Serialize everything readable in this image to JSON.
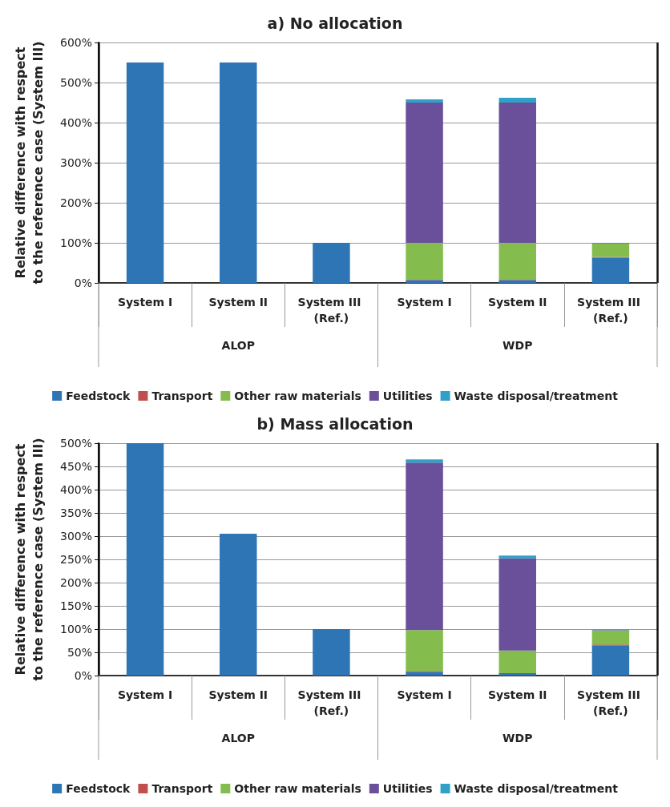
{
  "chart_data": [
    {
      "type": "bar",
      "title": "a) No allocation",
      "ylabel": "Relative difference with respect to the reference case (System III)",
      "categories": [
        "System I",
        "System II",
        "System III (Ref.)",
        "System I",
        "System II",
        "System III (Ref.)"
      ],
      "annotations": [
        "ALOP",
        "WDP"
      ],
      "stacked": true,
      "grid": "y",
      "legend": "bottom",
      "ylim": [
        0,
        600
      ],
      "yticks": [
        {
          "value": 0,
          "label": "0%"
        },
        {
          "value": 100,
          "label": "100%"
        },
        {
          "value": 200,
          "label": "200%"
        },
        {
          "value": 300,
          "label": "300%"
        },
        {
          "value": 400,
          "label": "400%"
        },
        {
          "value": 500,
          "label": "500%"
        },
        {
          "value": 600,
          "label": "600%"
        }
      ],
      "series": [
        {
          "name": "Feedstock",
          "color": "#2e75b6",
          "values": [
            550,
            550,
            100,
            7,
            7,
            63
          ]
        },
        {
          "name": "Transport",
          "color": "#c0504d",
          "values": [
            null,
            null,
            null,
            1,
            1,
            2
          ]
        },
        {
          "name": "Other raw materials",
          "color": "#84bd4e",
          "values": [
            null,
            null,
            null,
            92,
            92,
            33
          ]
        },
        {
          "name": "Utilities",
          "color": "#6a4f9a",
          "values": [
            null,
            null,
            null,
            350,
            350,
            1
          ]
        },
        {
          "name": "Waste disposal/treatment",
          "color": "#31a0c8",
          "values": [
            null,
            null,
            null,
            8,
            12,
            1
          ]
        }
      ]
    },
    {
      "type": "bar",
      "title": "b) Mass allocation",
      "ylabel": "Relative difference with respect to the reference case (System III)",
      "categories": [
        "System I",
        "System II",
        "System III (Ref.)",
        "System I",
        "System II",
        "System III (Ref.)"
      ],
      "annotations": [
        "ALOP",
        "WDP"
      ],
      "stacked": true,
      "grid": "y",
      "legend": "bottom",
      "ylim": [
        0,
        500
      ],
      "yticks": [
        {
          "value": 0,
          "label": "0%"
        },
        {
          "value": 50,
          "label": "50%"
        },
        {
          "value": 100,
          "label": "100%"
        },
        {
          "value": 150,
          "label": "150%"
        },
        {
          "value": 200,
          "label": "200%"
        },
        {
          "value": 250,
          "label": "250%"
        },
        {
          "value": 300,
          "label": "300%"
        },
        {
          "value": 350,
          "label": "350%"
        },
        {
          "value": 400,
          "label": "400%"
        },
        {
          "value": 450,
          "label": "450%"
        },
        {
          "value": 500,
          "label": "500%"
        }
      ],
      "series": [
        {
          "name": "Feedstock",
          "color": "#2e75b6",
          "values": [
            500,
            305,
            100,
            8,
            5,
            65
          ]
        },
        {
          "name": "Transport",
          "color": "#c0504d",
          "values": [
            null,
            null,
            null,
            2,
            null,
            2
          ]
        },
        {
          "name": "Other raw materials",
          "color": "#84bd4e",
          "values": [
            null,
            null,
            null,
            88,
            49,
            30
          ]
        },
        {
          "name": "Utilities",
          "color": "#6a4f9a",
          "values": [
            null,
            null,
            null,
            360,
            198,
            1
          ]
        },
        {
          "name": "Waste disposal/treatment",
          "color": "#31a0c8",
          "values": [
            null,
            null,
            null,
            7,
            6,
            1
          ]
        }
      ]
    }
  ]
}
